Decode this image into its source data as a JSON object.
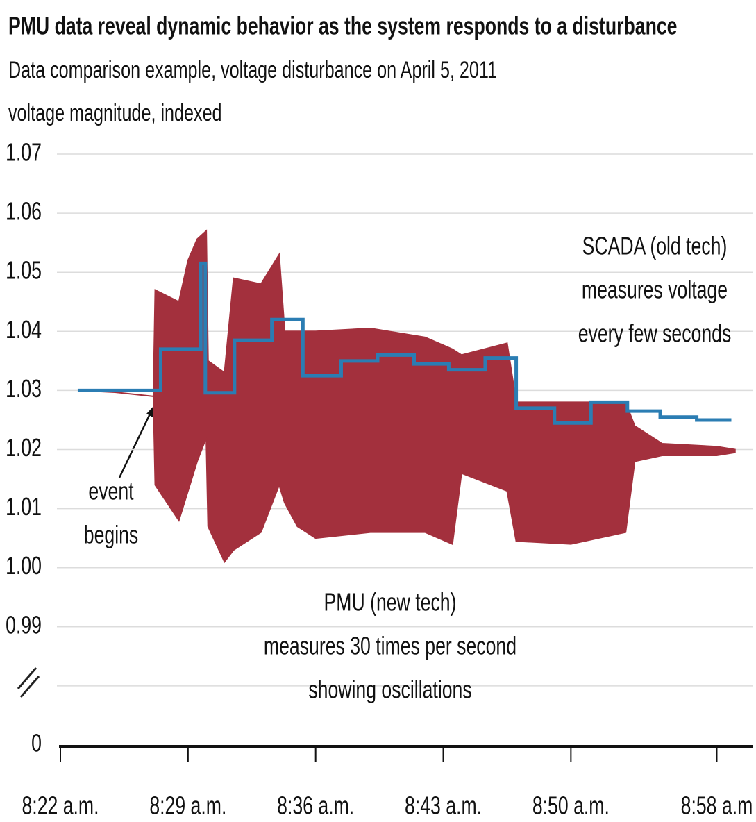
{
  "chart_data": {
    "type": "line",
    "title": "PMU data reveal  dynamic behavior as the system  responds to a disturbance",
    "subtitle": "Data comparison example, voltage disturbance on April 5, 2011",
    "y_label": "voltage magnitude, indexed",
    "ylim": [
      0,
      1.07
    ],
    "yticks": [
      {
        "value": 0,
        "label": "0"
      },
      0.99,
      {
        "value": 1,
        "label": "1.00"
      },
      1.01,
      1.02,
      1.03,
      1.04,
      1.05,
      1.06,
      1.07
    ],
    "axis_break": true,
    "grid": true,
    "xlim": [
      0,
      38
    ],
    "xticks": [
      {
        "value": 0,
        "label": "8:22 a.m."
      },
      {
        "value": 7,
        "label": "8:29 a.m."
      },
      {
        "value": 14,
        "label": "8:36 a.m."
      },
      {
        "value": 21,
        "label": "8:43 a.m."
      },
      {
        "value": 28,
        "label": "8:50 a.m."
      },
      {
        "value": 36,
        "label": "8:58 a.m"
      }
    ],
    "band": {
      "color": "#a3303d",
      "x": [
        1,
        3,
        5.1,
        5.2,
        6.5,
        7,
        7.5,
        8,
        8.1,
        9,
        9.5,
        11,
        12,
        12.3,
        13,
        14,
        17,
        20,
        21.5,
        22,
        24.5,
        25,
        28,
        31,
        31.5,
        33,
        36,
        37
      ],
      "values_high": [
        1.03,
        1.0297,
        1.029,
        1.047,
        1.045,
        1.052,
        1.0556,
        1.057,
        1.035,
        1.033,
        1.049,
        1.048,
        1.053,
        1.04,
        1.04,
        1.04,
        1.0405,
        1.039,
        1.037,
        1.036,
        1.038,
        1.028,
        1.028,
        1.028,
        1.024,
        1.021,
        1.0205,
        1.02
      ],
      "values_low": [
        1.03,
        1.0297,
        1.029,
        1.014,
        1.008,
        1.013,
        1.018,
        1.022,
        1.007,
        1.001,
        1.003,
        1.006,
        1.014,
        1.011,
        1.007,
        1.005,
        1.006,
        1.006,
        1.004,
        1.016,
        1.013,
        1.0045,
        1.004,
        1.006,
        1.018,
        1.019,
        1.019,
        1.0195
      ]
    },
    "series": [
      {
        "color": "#2b7db3",
        "step": true,
        "x": [
          0.95,
          5.5,
          7.7,
          7.95,
          9.55,
          11.6,
          13.3,
          15.4,
          17.4,
          19.4,
          21.3,
          23.3,
          25.0,
          27.1,
          29.1,
          31.1,
          32.9,
          34.9,
          36.8
        ],
        "values": [
          1.03,
          1.037,
          1.0515,
          1.0296,
          1.0385,
          1.042,
          1.0325,
          1.035,
          1.036,
          1.0345,
          1.0335,
          1.0355,
          1.027,
          1.0245,
          1.028,
          1.0265,
          1.0255,
          1.025,
          1.025
        ]
      }
    ],
    "annotations": [
      {
        "lines": [
          "event",
          "begins"
        ]
      },
      {
        "lines": [
          "SCADA (old tech)",
          "measures voltage",
          "every few seconds"
        ]
      },
      {
        "lines": [
          "PMU (new  tech)",
          "measures 30 times per second",
          "showing oscillations"
        ]
      }
    ]
  }
}
